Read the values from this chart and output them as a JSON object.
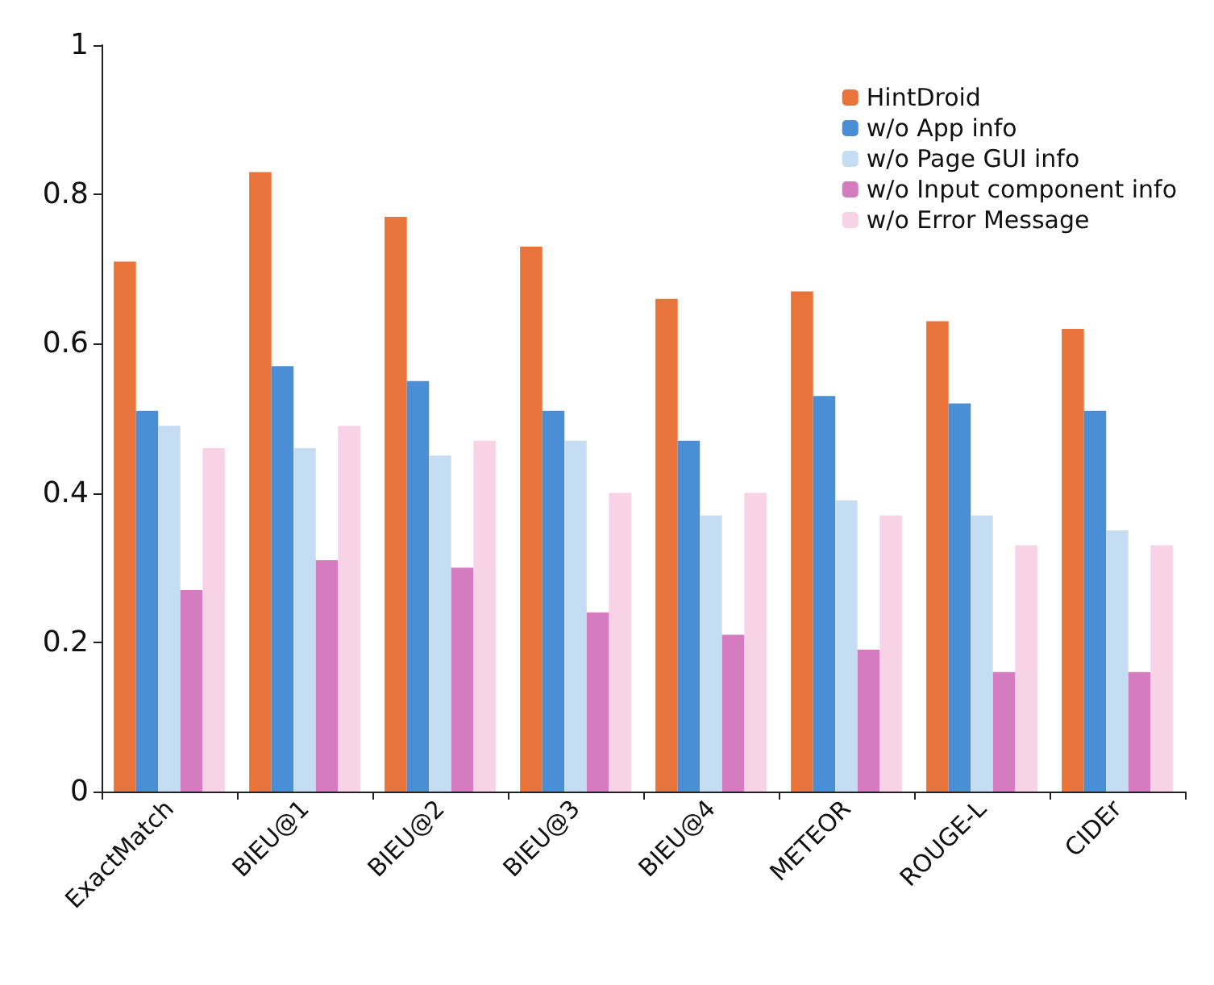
{
  "chart_data": {
    "type": "bar",
    "categories": [
      "ExactMatch",
      "BIEU@1",
      "BIEU@2",
      "BIEU@3",
      "BIEU@4",
      "METEOR",
      "ROUGE-L",
      "CIDEr"
    ],
    "series": [
      {
        "name": "HintDroid",
        "color": "#e8743b",
        "values": [
          0.71,
          0.83,
          0.77,
          0.73,
          0.66,
          0.67,
          0.63,
          0.62
        ]
      },
      {
        "name": "w/o App info",
        "color": "#4a8fd6",
        "values": [
          0.51,
          0.57,
          0.55,
          0.51,
          0.47,
          0.53,
          0.52,
          0.51
        ]
      },
      {
        "name": "w/o Page GUI info",
        "color": "#c5ddf2",
        "values": [
          0.49,
          0.46,
          0.45,
          0.47,
          0.37,
          0.39,
          0.37,
          0.35
        ]
      },
      {
        "name": "w/o Input component info",
        "color": "#d47cbf",
        "values": [
          0.27,
          0.31,
          0.3,
          0.24,
          0.21,
          0.19,
          0.16,
          0.16
        ]
      },
      {
        "name": "w/o Error Message",
        "color": "#f8d3e6",
        "values": [
          0.46,
          0.49,
          0.47,
          0.4,
          0.4,
          0.37,
          0.33,
          0.33
        ]
      }
    ],
    "ylim": [
      0,
      1
    ],
    "yticks": [
      0,
      0.2,
      0.4,
      0.6,
      0.8,
      1
    ],
    "grid": false,
    "legend": "top right"
  }
}
